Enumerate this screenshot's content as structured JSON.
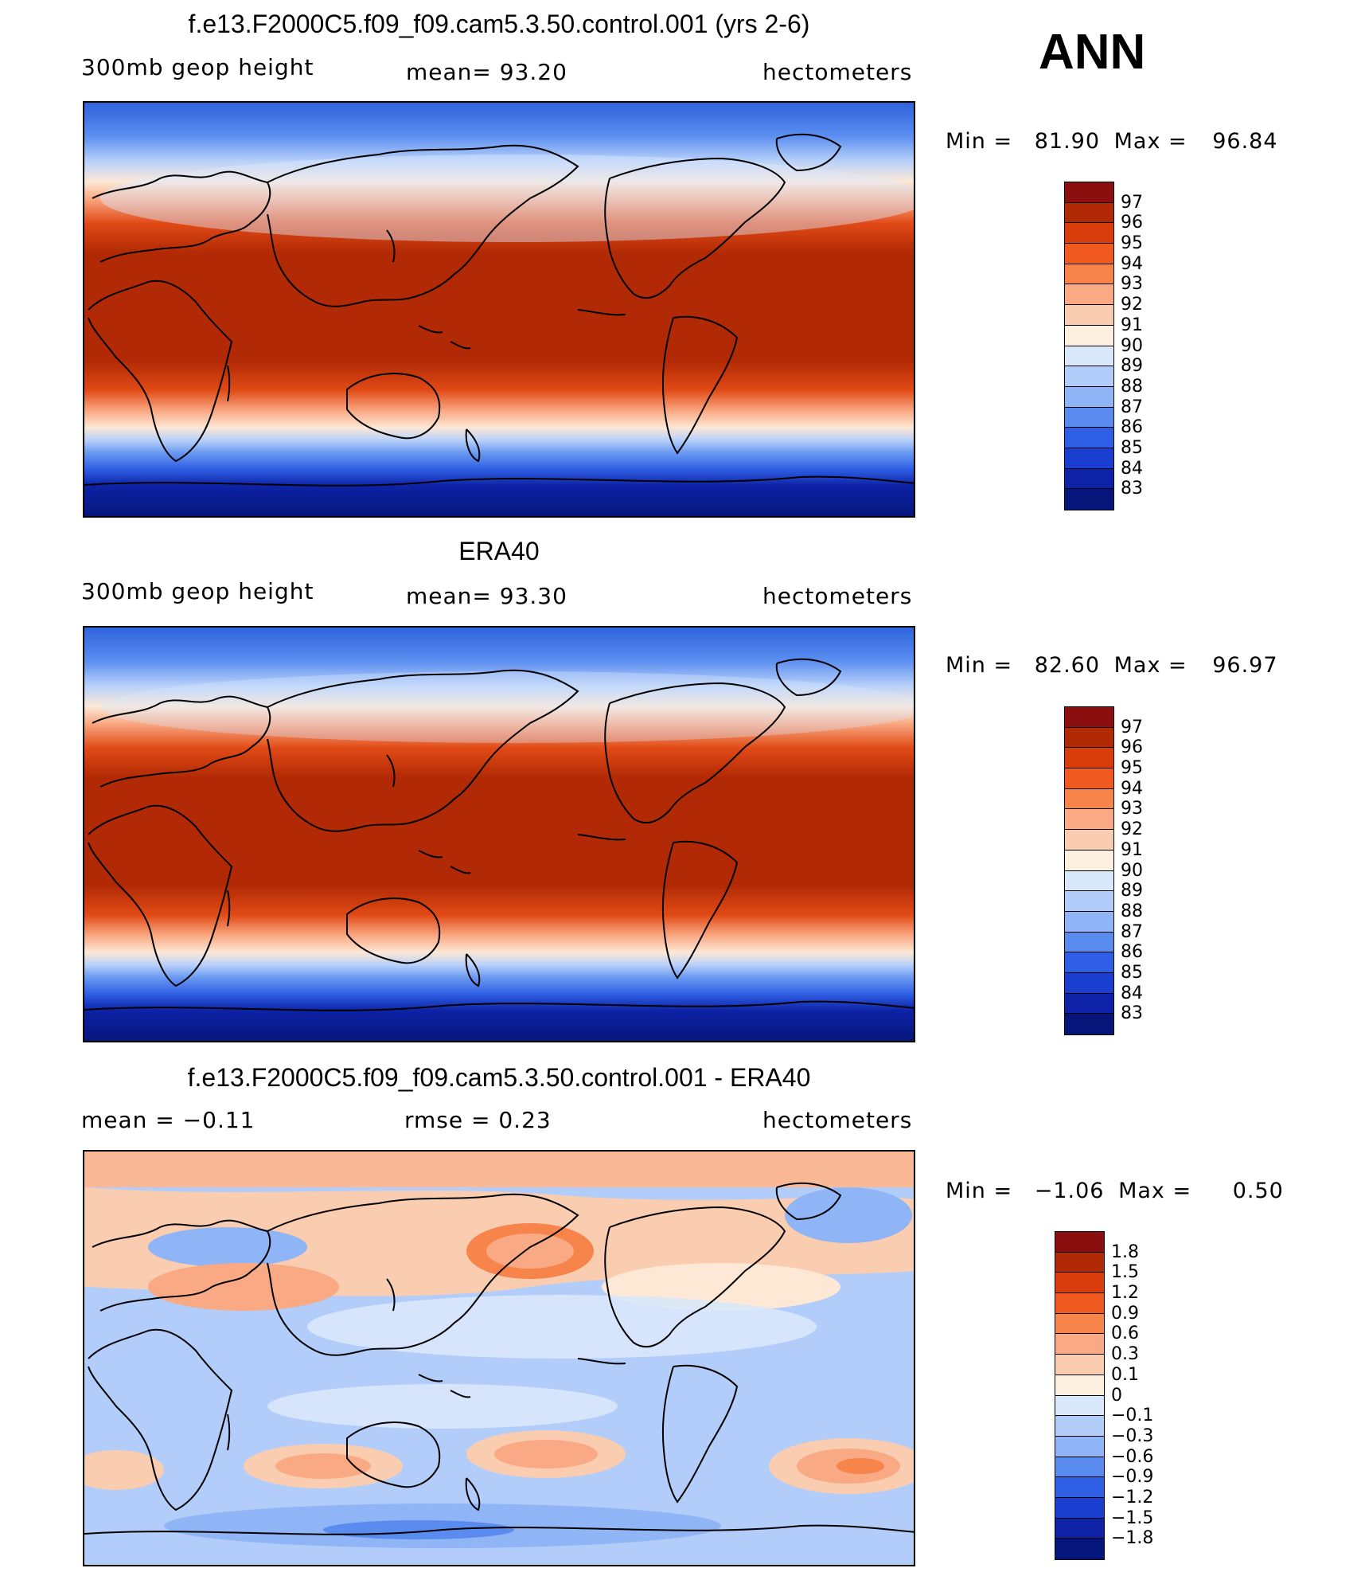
{
  "season": "ANN",
  "panels": [
    {
      "id": "model",
      "title": "f.e13.F2000C5.f09_f09.cam5.3.50.control.001 (yrs 2-6)",
      "left_label": "300mb  geop  height",
      "mid_label": "mean=   93.20",
      "right_label": "hectometers",
      "min_label": "Min  =",
      "min_value": "81.90",
      "max_label": "Max  =",
      "max_value": "96.84"
    },
    {
      "id": "obs",
      "title": "ERA40",
      "left_label": "300mb  geop  height",
      "mid_label": "mean=   93.30",
      "right_label": "hectometers",
      "min_label": "Min  =",
      "min_value": "82.60",
      "max_label": "Max  =",
      "max_value": "96.97"
    },
    {
      "id": "diff",
      "title": "f.e13.F2000C5.f09_f09.cam5.3.50.control.001 - ERA40",
      "left_label": "mean  =    −0.11",
      "mid_label": "rmse  =     0.23",
      "right_label": "hectometers",
      "min_label": "Min  =",
      "min_value": "−1.06",
      "max_label": "Max  =",
      "max_value": "0.50"
    }
  ],
  "colorbars": {
    "abs": {
      "labels": [
        "97",
        "96",
        "95",
        "94",
        "93",
        "92",
        "91",
        "90",
        "89",
        "88",
        "87",
        "86",
        "85",
        "84",
        "83"
      ],
      "colors": [
        "#8b0f0f",
        "#b22a05",
        "#d93d0c",
        "#f05a20",
        "#f6844b",
        "#f9a983",
        "#fbcdb0",
        "#fdf0e0",
        "#d9e8fb",
        "#b2cdf9",
        "#8fb5f6",
        "#5a8bee",
        "#2f5fe4",
        "#1a3fd0",
        "#0d22a6",
        "#061579"
      ]
    },
    "diff": {
      "labels": [
        "1.8",
        "1.5",
        "1.2",
        "0.9",
        "0.6",
        "0.3",
        "0.1",
        "0",
        "−0.1",
        "−0.3",
        "−0.6",
        "−0.9",
        "−1.2",
        "−1.5",
        "−1.8"
      ],
      "colors": [
        "#8b0f0f",
        "#b22a05",
        "#d93d0c",
        "#f05a20",
        "#f6844b",
        "#f9a983",
        "#fbcdb0",
        "#fdf0e0",
        "#d9e8fb",
        "#b2cdf9",
        "#8fb5f6",
        "#5a8bee",
        "#2f5fe4",
        "#1a3fd0",
        "#0d22a6",
        "#061579"
      ]
    }
  }
}
